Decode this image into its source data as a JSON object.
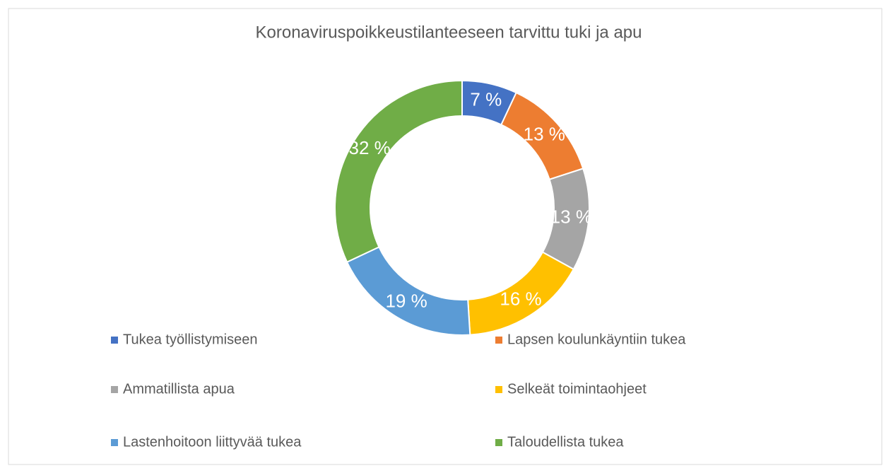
{
  "chart_data": {
    "type": "donut",
    "title": "Koronaviruspoikkeustilanteeseen tarvittu tuki ja apu",
    "categories": [
      "Tukea työllistymiseen",
      "Lapsen koulunkäyntiin tukea",
      "Ammatillista apua",
      "Selkeät toimintaohjeet",
      "Lastenhoitoon liittyvää tukea",
      "Taloudellista tukea"
    ],
    "values": [
      7,
      13,
      13,
      16,
      19,
      32
    ],
    "value_labels": [
      "7 %",
      "13 %",
      "13 %",
      "16 %",
      "19 %",
      "32 %"
    ],
    "colors": [
      "#4472c4",
      "#ed7d31",
      "#a5a5a5",
      "#ffc000",
      "#5b9bd5",
      "#70ad47"
    ],
    "legend": "bottom"
  }
}
